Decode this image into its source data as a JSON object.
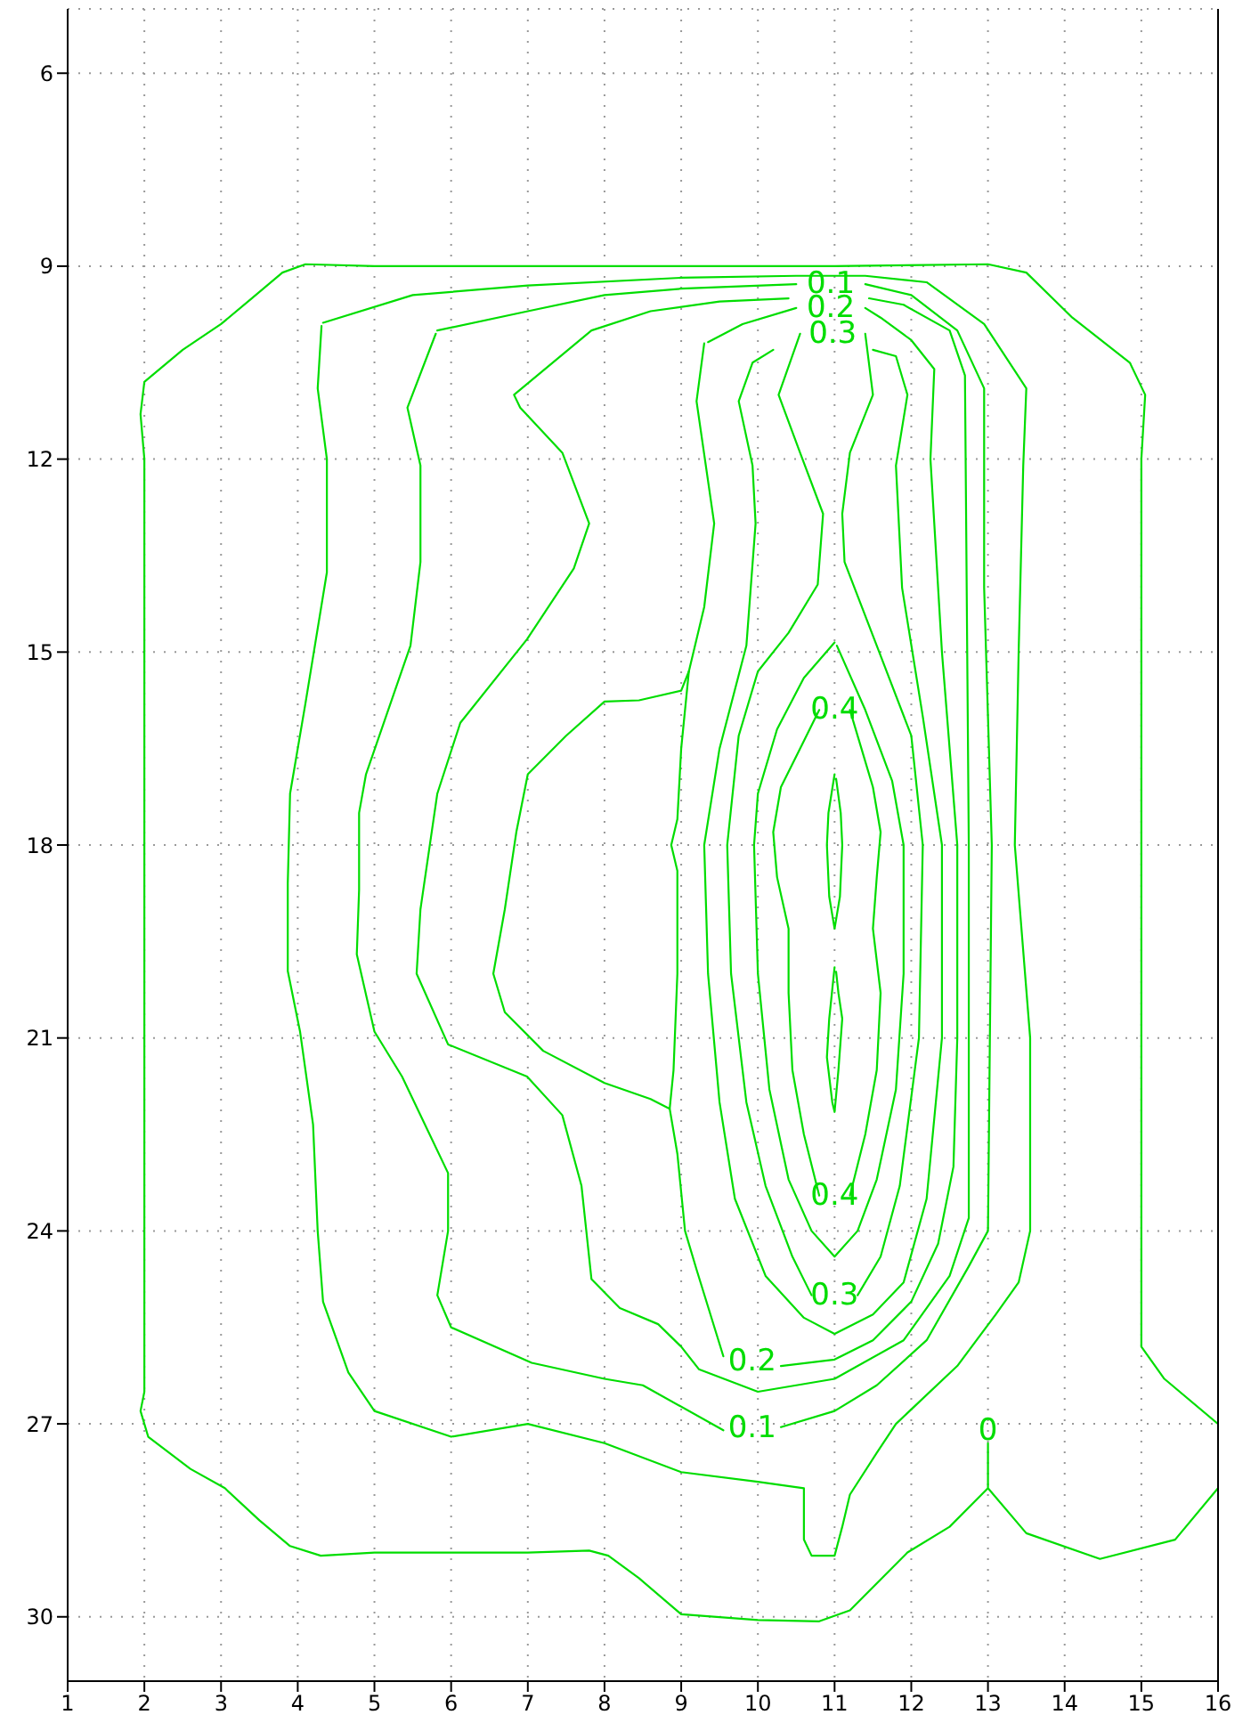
{
  "chart_data": {
    "type": "line",
    "xlim": [
      1,
      16
    ],
    "ylim": [
      31,
      5
    ],
    "xticks": [
      1,
      2,
      3,
      4,
      5,
      6,
      7,
      8,
      9,
      10,
      11,
      12,
      13,
      14,
      15,
      16
    ],
    "yticks": [
      6,
      9,
      12,
      15,
      18,
      21,
      24,
      27,
      30
    ],
    "grid": true,
    "series": [
      {
        "color": "#00dd00",
        "x": [
          16,
          15.3,
          15,
          15,
          15,
          15,
          15.05,
          14.85,
          14.1,
          13.5,
          13,
          11,
          8,
          5,
          4.1,
          3.8,
          3.4,
          3,
          2.5,
          2,
          1.95,
          2,
          2,
          2,
          2,
          1.95,
          2.05,
          2.6,
          3.05,
          3.5,
          3.9,
          4.3,
          5,
          7,
          7.8,
          8.05,
          8.45,
          9,
          10,
          10.8,
          11.2,
          11.95,
          12.5,
          13,
          13,
          13,
          13.5,
          14.46,
          15.44,
          16
        ],
        "values": [
          27,
          26.3,
          25.8,
          24,
          18,
          12,
          11,
          10.5,
          9.8,
          9.1,
          8.97,
          9,
          9,
          9,
          8.97,
          9.1,
          9.5,
          9.9,
          10.3,
          10.8,
          11.3,
          12,
          18,
          24,
          26.5,
          26.8,
          27.2,
          27.7,
          28,
          28.5,
          28.9,
          29.05,
          29,
          29,
          28.97,
          29.05,
          29.4,
          29.96,
          30.05,
          30.07,
          29.9,
          29,
          28.6,
          28,
          27.3,
          28,
          28.7,
          29.1,
          28.8,
          28
        ]
      },
      {
        "color": "#00dd00",
        "x": [
          4.33,
          5.5,
          7,
          9,
          10.5,
          11.4,
          12.2,
          12.95,
          13.5,
          13.46,
          13.4,
          13.35,
          13.55,
          13.55,
          13.4,
          13.1,
          12.6,
          11.8,
          11.55,
          11.2,
          11.1,
          11,
          10.7,
          10.6,
          10.6,
          10,
          9,
          8,
          7,
          6,
          5,
          4.66,
          4.33,
          4.26,
          4.2,
          4.03,
          3.87,
          3.87,
          3.9,
          4.1,
          4.38,
          4.38,
          4.26,
          4.31
        ],
        "values": [
          9.88,
          9.45,
          9.3,
          9.18,
          9.15,
          9.15,
          9.25,
          9.9,
          10.9,
          12.1,
          15,
          18,
          21,
          24,
          24.8,
          25.3,
          26.1,
          27,
          27.45,
          28.1,
          28.6,
          29.05,
          29.05,
          28.8,
          28,
          27.9,
          27.75,
          27.3,
          27,
          27.2,
          26.8,
          26.2,
          25.1,
          24,
          22.35,
          20.9,
          19.96,
          18.6,
          17.2,
          15.8,
          13.76,
          12,
          10.9,
          9.93
        ]
      },
      {
        "name": "0.1",
        "color": "#00dd00",
        "x": [
          5.82,
          7,
          8,
          9,
          10.5,
          10.95,
          11.4,
          12,
          12.6,
          12.95,
          12.95,
          13.05,
          13,
          12.75,
          12.2,
          11.55,
          11,
          10.3,
          9.93,
          9.55,
          8.5,
          8,
          7.05,
          6,
          5.82,
          5.96,
          5.96,
          5.36,
          5,
          4.77,
          4.8,
          4.8,
          4.89,
          5.47,
          5.6,
          5.6,
          5.43,
          5.8
        ],
        "values": [
          10,
          9.7,
          9.45,
          9.35,
          9.28,
          null,
          9.28,
          9.45,
          10,
          10.9,
          14,
          18,
          24,
          24.55,
          25.7,
          26.4,
          26.8,
          27.05,
          null,
          27.1,
          26.4,
          26.3,
          26.05,
          25.5,
          25,
          24,
          23.1,
          21.6,
          20.9,
          19.7,
          18.7,
          17.5,
          16.9,
          14.9,
          13.6,
          12.1,
          11.2,
          10.05
        ]
      },
      {
        "color": "#00dd00",
        "x": [
          10.4,
          9.5,
          8.6,
          7.83,
          6.82,
          6.9,
          7.45,
          7.8,
          7.6,
          6.99,
          6.12,
          5.82,
          5.6,
          5.55,
          5.96,
          6.99,
          7.45,
          7.7,
          7.83,
          8.2,
          8.7,
          9,
          9.23,
          10,
          11,
          11.9,
          12.5,
          12.75,
          12.75,
          12.7,
          12.5,
          11.9,
          11.45
        ],
        "values": [
          9.5,
          9.55,
          9.7,
          10,
          11,
          11.2,
          11.9,
          13,
          13.7,
          14.8,
          16.1,
          17.2,
          19,
          20,
          21.1,
          21.6,
          22.2,
          23.3,
          24.75,
          25.2,
          25.45,
          25.8,
          26.15,
          26.5,
          26.3,
          25.7,
          24.7,
          23.8,
          18,
          10.7,
          10,
          9.6,
          9.5
        ]
      },
      {
        "name": "0.2",
        "color": "#00dd00",
        "x": [
          9.3,
          9.2,
          9.43,
          9.3,
          9.1,
          9,
          8.45,
          8,
          7.5,
          7,
          6.85,
          6.7,
          6.55,
          6.7,
          7.2,
          8,
          8.6,
          8.85,
          8.95,
          9.05,
          9.2,
          9.55,
          9.93,
          10.3,
          11,
          11.5,
          12,
          12.35,
          12.55,
          12.6,
          12.6,
          12.4,
          12.25,
          12.3,
          12,
          11.6,
          11.4,
          10.95,
          10.5,
          9.8,
          9.35
        ],
        "values": [
          10.2,
          11.1,
          13,
          14.3,
          15.3,
          15.6,
          15.75,
          15.77,
          16.3,
          16.9,
          17.8,
          19,
          20,
          20.6,
          21.2,
          21.7,
          21.95,
          22.1,
          22.8,
          24,
          24.6,
          25.95,
          null,
          26.1,
          26,
          25.7,
          25.1,
          24.2,
          23,
          21,
          18,
          15,
          12,
          10.6,
          10.15,
          9.8,
          9.65,
          null,
          9.65,
          9.9,
          10.18
        ]
      },
      {
        "color": "#00dd00",
        "x": [
          9.1,
          9,
          8.95,
          8.87,
          8.95,
          8.95,
          8.9,
          8.85
        ],
        "values": [
          15.3,
          16.5,
          17.6,
          18,
          18.4,
          20,
          21.5,
          22.1
        ]
      },
      {
        "color": "#00dd00",
        "x": [
          10.2,
          9.93,
          9.75,
          9.93,
          9.97,
          9.85,
          9.5,
          9.3,
          9.35,
          9.5,
          9.7,
          10.1,
          10.6,
          11,
          11.5,
          11.9,
          12.2,
          12.4,
          12.4,
          12.15,
          11.88,
          11.8,
          11.95,
          11.8,
          11.5
        ],
        "values": [
          10.3,
          10.5,
          11.1,
          12.1,
          13,
          14.9,
          16.5,
          18,
          20,
          22,
          23.5,
          24.7,
          25.35,
          25.6,
          25.3,
          24.8,
          23.5,
          21,
          18,
          16,
          14,
          12.1,
          11,
          10.4,
          10.3
        ]
      },
      {
        "name": "0.3",
        "color": "#00dd00",
        "x": [
          10.55,
          10.27,
          10.55,
          10.85,
          10.78,
          10.4,
          10,
          9.75,
          9.6,
          9.65,
          9.85,
          10.1,
          10.45,
          10.7,
          11,
          11.3,
          11.6,
          11.85,
          12.1,
          12.15,
          12,
          11.55,
          11.13,
          11.1,
          11.2,
          11.5,
          11.4,
          10.975,
          10.55
        ],
        "values": [
          10.05,
          11,
          11.9,
          12.85,
          13.95,
          14.7,
          15.3,
          16.3,
          18,
          20,
          22,
          23.3,
          24.4,
          25,
          null,
          25,
          24.4,
          23.3,
          21,
          18,
          16.3,
          14.9,
          13.6,
          12.85,
          11.9,
          11,
          10.05,
          null,
          10.05
        ]
      },
      {
        "color": "#00dd00",
        "x": [
          11,
          10.6,
          10.25,
          10,
          9.95,
          10,
          10.15,
          10.4,
          10.7,
          11,
          11.3,
          11.55,
          11.8,
          11.9,
          11.9,
          11.75,
          11.4,
          11.03
        ],
        "values": [
          14.85,
          15.4,
          16.2,
          17.2,
          18,
          20,
          21.8,
          23.2,
          24,
          24.4,
          24,
          23.2,
          21.8,
          20,
          18,
          17,
          15.9,
          14.9
        ]
      },
      {
        "name": "0.4",
        "color": "#00dd00",
        "x": [
          10.8,
          10.55,
          10.3,
          10.2,
          10.25,
          10.4,
          10.4,
          10.45,
          10.6,
          10.8,
          11,
          11.2,
          11.4,
          11.55,
          11.6,
          11.5,
          11.55,
          11.6,
          11.5,
          11.35,
          11.2,
          11,
          10.8
        ],
        "values": [
          15.9,
          16.5,
          17.1,
          17.8,
          18.5,
          19.3,
          20.3,
          21.5,
          22.5,
          23.45,
          null,
          23.45,
          22.5,
          21.5,
          20.3,
          19.3,
          18.5,
          17.8,
          17.1,
          16.5,
          15.9,
          null,
          15.9
        ]
      },
      {
        "color": "#00dd00",
        "x": [
          11,
          10.92,
          10.9,
          10.93,
          11,
          11.07,
          11.1,
          11.08,
          11.02
        ],
        "values": [
          16.9,
          17.5,
          18,
          18.8,
          19.3,
          18.8,
          18,
          17.5,
          16.97
        ]
      },
      {
        "color": "#00dd00",
        "x": [
          11,
          10.93,
          10.9,
          10.97,
          11,
          11.05,
          11.1,
          11.05,
          11.02
        ],
        "values": [
          19.9,
          20.7,
          21.3,
          22,
          22.15,
          21.5,
          20.7,
          20.3,
          19.97
        ]
      }
    ],
    "annotations": [
      {
        "text": "0",
        "x": 13,
        "y": 27.3
      }
    ]
  }
}
